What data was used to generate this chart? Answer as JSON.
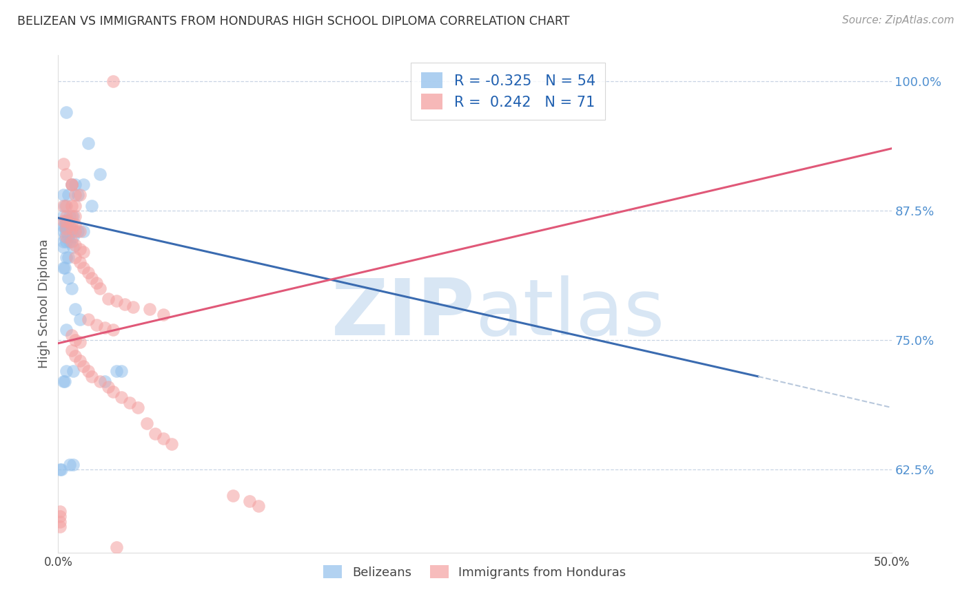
{
  "title": "BELIZEAN VS IMMIGRANTS FROM HONDURAS HIGH SCHOOL DIPLOMA CORRELATION CHART",
  "source": "Source: ZipAtlas.com",
  "ylabel": "High School Diploma",
  "right_yticks": [
    "100.0%",
    "87.5%",
    "75.0%",
    "62.5%"
  ],
  "right_ytick_vals": [
    1.0,
    0.875,
    0.75,
    0.625
  ],
  "legend_blue_r": "-0.325",
  "legend_blue_n": "54",
  "legend_pink_r": "0.242",
  "legend_pink_n": "71",
  "blue_color": "#92C0EC",
  "pink_color": "#F4A0A0",
  "blue_line_color": "#3A6BB0",
  "pink_line_color": "#E05878",
  "dashed_line_color": "#B8C8DC",
  "grid_color": "#C8D4E4",
  "background_color": "#FFFFFF",
  "watermark_zip": "ZIP",
  "watermark_atlas": "atlas",
  "watermark_color": "#D8E6F4",
  "blue_scatter_x": [
    0.005,
    0.018,
    0.025,
    0.01,
    0.015,
    0.008,
    0.003,
    0.006,
    0.012,
    0.02,
    0.004,
    0.007,
    0.009,
    0.003,
    0.005,
    0.006,
    0.004,
    0.003,
    0.005,
    0.007,
    0.004,
    0.003,
    0.005,
    0.008,
    0.012,
    0.015,
    0.004,
    0.006,
    0.009,
    0.003,
    0.005,
    0.007,
    0.009,
    0.003,
    0.005,
    0.006,
    0.003,
    0.004,
    0.006,
    0.008,
    0.01,
    0.013,
    0.005,
    0.035,
    0.005,
    0.009,
    0.003,
    0.004,
    0.028,
    0.038,
    0.007,
    0.009,
    0.001,
    0.002
  ],
  "blue_scatter_y": [
    0.97,
    0.94,
    0.91,
    0.9,
    0.9,
    0.9,
    0.89,
    0.89,
    0.89,
    0.88,
    0.88,
    0.87,
    0.87,
    0.87,
    0.865,
    0.865,
    0.865,
    0.86,
    0.86,
    0.86,
    0.86,
    0.855,
    0.855,
    0.855,
    0.855,
    0.855,
    0.85,
    0.85,
    0.85,
    0.845,
    0.845,
    0.845,
    0.84,
    0.84,
    0.83,
    0.83,
    0.82,
    0.82,
    0.81,
    0.8,
    0.78,
    0.77,
    0.76,
    0.72,
    0.72,
    0.72,
    0.71,
    0.71,
    0.71,
    0.72,
    0.63,
    0.63,
    0.625,
    0.625
  ],
  "pink_scatter_x": [
    0.003,
    0.005,
    0.008,
    0.008,
    0.01,
    0.013,
    0.003,
    0.005,
    0.008,
    0.01,
    0.005,
    0.008,
    0.01,
    0.003,
    0.005,
    0.008,
    0.01,
    0.005,
    0.008,
    0.01,
    0.013,
    0.005,
    0.008,
    0.01,
    0.013,
    0.015,
    0.01,
    0.013,
    0.015,
    0.018,
    0.02,
    0.023,
    0.025,
    0.03,
    0.035,
    0.04,
    0.045,
    0.055,
    0.063,
    0.018,
    0.023,
    0.028,
    0.033,
    0.008,
    0.01,
    0.013,
    0.008,
    0.01,
    0.013,
    0.015,
    0.018,
    0.02,
    0.025,
    0.03,
    0.033,
    0.038,
    0.043,
    0.048,
    0.053,
    0.058,
    0.063,
    0.068,
    0.105,
    0.115,
    0.12,
    0.001,
    0.001,
    0.033,
    0.035,
    0.001,
    0.001
  ],
  "pink_scatter_y": [
    0.92,
    0.91,
    0.9,
    0.9,
    0.89,
    0.89,
    0.88,
    0.88,
    0.88,
    0.88,
    0.87,
    0.87,
    0.87,
    0.865,
    0.865,
    0.862,
    0.862,
    0.858,
    0.858,
    0.855,
    0.855,
    0.85,
    0.845,
    0.842,
    0.838,
    0.835,
    0.83,
    0.825,
    0.82,
    0.815,
    0.81,
    0.805,
    0.8,
    0.79,
    0.788,
    0.785,
    0.782,
    0.78,
    0.775,
    0.77,
    0.765,
    0.762,
    0.76,
    0.755,
    0.75,
    0.748,
    0.74,
    0.735,
    0.73,
    0.725,
    0.72,
    0.715,
    0.71,
    0.705,
    0.7,
    0.695,
    0.69,
    0.685,
    0.67,
    0.66,
    0.655,
    0.65,
    0.6,
    0.595,
    0.59,
    0.585,
    0.58,
    1.0,
    0.55,
    0.57,
    0.575
  ],
  "xlim": [
    0.0,
    0.5
  ],
  "ylim": [
    0.545,
    1.025
  ],
  "blue_trend_x": [
    0.0,
    0.42
  ],
  "blue_trend_y": [
    0.868,
    0.715
  ],
  "pink_trend_x": [
    0.0,
    0.5
  ],
  "pink_trend_y": [
    0.747,
    0.935
  ],
  "dashed_trend_x": [
    0.42,
    0.5
  ],
  "dashed_trend_y": [
    0.715,
    0.685
  ]
}
